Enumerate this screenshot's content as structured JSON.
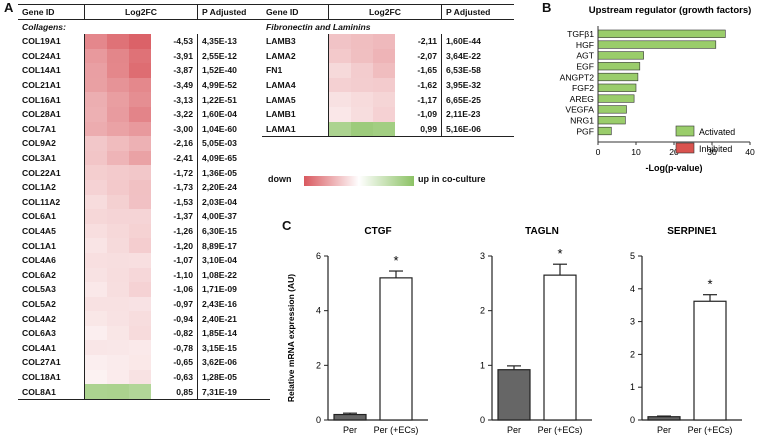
{
  "panel_a": {
    "letter": "A",
    "headers": {
      "gene": "Gene ID",
      "fc": "Log2FC",
      "padj": "P Adjusted"
    },
    "collagens": {
      "section_label": "Collagens:",
      "rows": [
        {
          "gene": "COL19A1",
          "fc": "-4,53",
          "padj": "4,35E-13"
        },
        {
          "gene": "COL24A1",
          "fc": "-3,91",
          "padj": "2,55E-12"
        },
        {
          "gene": "COL14A1",
          "fc": "-3,87",
          "padj": "1,52E-40"
        },
        {
          "gene": "COL21A1",
          "fc": "-3,49",
          "padj": "4,99E-52"
        },
        {
          "gene": "COL16A1",
          "fc": "-3,13",
          "padj": "1,22E-51"
        },
        {
          "gene": "COL28A1",
          "fc": "-3,22",
          "padj": "1,60E-04"
        },
        {
          "gene": "COL7A1",
          "fc": "-3,00",
          "padj": "1,04E-60"
        },
        {
          "gene": "COL9A2",
          "fc": "-2,16",
          "padj": "5,05E-03"
        },
        {
          "gene": "COL3A1",
          "fc": "-2,41",
          "padj": "4,09E-65"
        },
        {
          "gene": "COL22A1",
          "fc": "-1,72",
          "padj": "1,36E-05"
        },
        {
          "gene": "COL1A2",
          "fc": "-1,73",
          "padj": "2,20E-24"
        },
        {
          "gene": "COL11A2",
          "fc": "-1,53",
          "padj": "2,03E-04"
        },
        {
          "gene": "COL6A1",
          "fc": "-1,37",
          "padj": "4,00E-37"
        },
        {
          "gene": "COL4A5",
          "fc": "-1,26",
          "padj": "6,30E-15"
        },
        {
          "gene": "COL1A1",
          "fc": "-1,20",
          "padj": "8,89E-17"
        },
        {
          "gene": "COL4A6",
          "fc": "-1,07",
          "padj": "3,10E-04"
        },
        {
          "gene": "COL6A2",
          "fc": "-1,10",
          "padj": "1,08E-22"
        },
        {
          "gene": "COL5A3",
          "fc": "-1,06",
          "padj": "1,71E-09"
        },
        {
          "gene": "COL5A2",
          "fc": "-0,97",
          "padj": "2,43E-16"
        },
        {
          "gene": "COL4A2",
          "fc": "-0,94",
          "padj": "2,40E-21"
        },
        {
          "gene": "COL6A3",
          "fc": "-0,82",
          "padj": "1,85E-14"
        },
        {
          "gene": "COL4A1",
          "fc": "-0,78",
          "padj": "3,15E-15"
        },
        {
          "gene": "COL27A1",
          "fc": "-0,65",
          "padj": "3,62E-06"
        },
        {
          "gene": "COL18A1",
          "fc": "-0,63",
          "padj": "1,28E-05"
        },
        {
          "gene": "COL8A1",
          "fc": "0,85",
          "padj": "7,31E-19"
        }
      ]
    },
    "fibronectin": {
      "section_label": "Fibronectin and Laminins",
      "rows": [
        {
          "gene": "LAMB3",
          "fc": "-2,11",
          "padj": "1,60E-44"
        },
        {
          "gene": "LAMA2",
          "fc": "-2,07",
          "padj": "3,64E-22"
        },
        {
          "gene": "FN1",
          "fc": "-1,65",
          "padj": "6,53E-58"
        },
        {
          "gene": "LAMA4",
          "fc": "-1,62",
          "padj": "3,95E-32"
        },
        {
          "gene": "LAMA5",
          "fc": "-1,17",
          "padj": "6,65E-25"
        },
        {
          "gene": "LAMB1",
          "fc": "-1,09",
          "padj": "2,11E-23"
        },
        {
          "gene": "LAMA1",
          "fc": "0,99",
          "padj": "5,16E-06"
        }
      ]
    },
    "legend": {
      "down": "down",
      "up": "up in co-culture",
      "down_color": "#d9595f",
      "up_color": "#8cc265"
    }
  },
  "chart_data": [
    {
      "type": "bar",
      "orientation": "horizontal",
      "letter": "B",
      "title": "Upstream regulator (growth factors)",
      "xlabel": "-Log(p-value)",
      "xlim": [
        0,
        40
      ],
      "xticks": [
        "0",
        "10",
        "20",
        "30",
        "40"
      ],
      "categories": [
        "TGFβ1",
        "HGF",
        "AGT",
        "EGF",
        "ANGPT2",
        "FGF2",
        "AREG",
        "VEGFA",
        "NRG1",
        "PGF"
      ],
      "values": [
        33.5,
        31,
        12,
        11,
        10.5,
        10,
        9.5,
        7.5,
        7.2,
        3.5
      ],
      "legend": [
        {
          "label": "Activated",
          "color": "#9acd6b"
        },
        {
          "label": "Inhibited",
          "color": "#d9534f"
        }
      ]
    },
    {
      "type": "bar",
      "letter": "C",
      "title": "CTGF",
      "ylabel": "Relative mRNA expression (AU)",
      "ylim": [
        0,
        6
      ],
      "yticks": [
        "0",
        "2",
        "4",
        "6"
      ],
      "categories": [
        "Per",
        "Per (+ECs)"
      ],
      "values": [
        0.2,
        5.2
      ],
      "errors": [
        0.05,
        0.25
      ],
      "colors": [
        "#666666",
        "#ffffff"
      ],
      "significance": "*"
    },
    {
      "type": "bar",
      "title": "TAGLN",
      "ylim": [
        0,
        3
      ],
      "yticks": [
        "0",
        "1",
        "2",
        "3"
      ],
      "categories": [
        "Per",
        "Per (+ECs)"
      ],
      "values": [
        0.92,
        2.65
      ],
      "errors": [
        0.07,
        0.2
      ],
      "colors": [
        "#666666",
        "#ffffff"
      ],
      "significance": "*"
    },
    {
      "type": "bar",
      "title": "SERPINE1",
      "ylim": [
        0,
        5
      ],
      "yticks": [
        "0",
        "1",
        "2",
        "3",
        "4",
        "5"
      ],
      "categories": [
        "Per",
        "Per (+ECs)"
      ],
      "values": [
        0.1,
        3.62
      ],
      "errors": [
        0.02,
        0.2
      ],
      "colors": [
        "#666666",
        "#ffffff"
      ],
      "significance": "*"
    }
  ]
}
